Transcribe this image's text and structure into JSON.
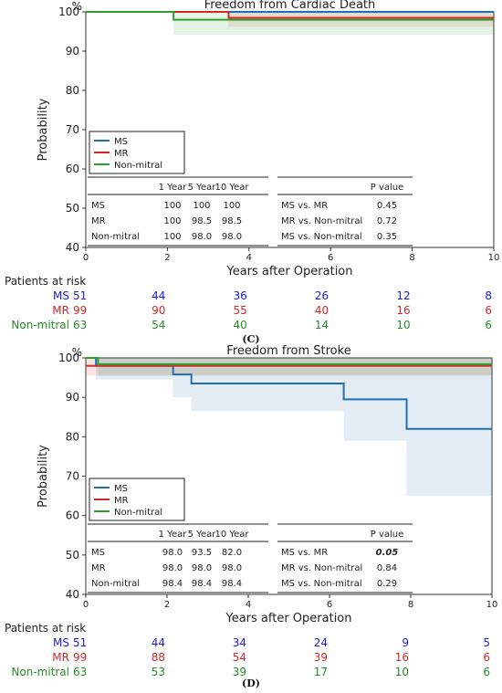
{
  "chart_data": [
    {
      "type": "line",
      "panel_label": "(C)",
      "title": "Freedom from Cardiac Death",
      "ylabel": "Probability",
      "y_unit": "%",
      "xlabel": "Years after Operation",
      "xlim": [
        0,
        10
      ],
      "ylim": [
        40,
        100
      ],
      "x_ticks": [
        "0",
        "2",
        "4",
        "6",
        "8",
        "10"
      ],
      "y_ticks": [
        "40",
        "50",
        "60",
        "70",
        "80",
        "90",
        "100"
      ],
      "legend_position": "lower-left",
      "series": [
        {
          "name": "MS",
          "color": "#1f6fb4",
          "steps": [
            [
              0,
              100
            ],
            [
              10,
              100
            ]
          ],
          "ci": [
            [
              0,
              100,
              100
            ],
            [
              10,
              100,
              100
            ]
          ]
        },
        {
          "name": "MR",
          "color": "#d62728",
          "steps": [
            [
              0,
              100
            ],
            [
              3.5,
              98.5
            ],
            [
              10,
              98.5
            ]
          ],
          "ci": [
            [
              0,
              100,
              100
            ],
            [
              3.5,
              96.2,
              100
            ],
            [
              10,
              96.2,
              100
            ]
          ]
        },
        {
          "name": "Non-mitral",
          "color": "#2ca02c",
          "steps": [
            [
              0,
              100
            ],
            [
              2.15,
              98.0
            ],
            [
              10,
              98.0
            ]
          ],
          "ci": [
            [
              0,
              100,
              100
            ],
            [
              2.15,
              94.2,
              100
            ],
            [
              10,
              94.2,
              100
            ]
          ]
        }
      ],
      "survival_table": {
        "headers": [
          "",
          "1 Year",
          "5 Year",
          "10 Year"
        ],
        "rows": [
          [
            "MS",
            "100",
            "100",
            "100"
          ],
          [
            "MR",
            "100",
            "98.5",
            "98.5"
          ],
          [
            "Non-mitral",
            "100",
            "98.0",
            "98.0"
          ]
        ]
      },
      "pvalue_table": {
        "header": "P value",
        "rows": [
          {
            "label": "MS vs. MR",
            "value": "0.45",
            "emphasis": false
          },
          {
            "label": "MR vs. Non-mitral",
            "value": "0.72",
            "emphasis": false
          },
          {
            "label": "MS vs. Non-mitral",
            "value": "0.35",
            "emphasis": false
          }
        ]
      },
      "risk_title": "Patients at risk",
      "at_risk": [
        {
          "name": "MS",
          "color": "#1a1ad6",
          "values": [
            "51",
            "44",
            "36",
            "26",
            "12",
            "8"
          ]
        },
        {
          "name": "MR",
          "color": "#d62728",
          "values": [
            "99",
            "90",
            "55",
            "40",
            "16",
            "6"
          ]
        },
        {
          "name": "Non-mitral",
          "color": "#2a8a2a",
          "values": [
            "63",
            "54",
            "40",
            "14",
            "10",
            "6"
          ]
        }
      ]
    },
    {
      "type": "line",
      "panel_label": "(D)",
      "title": "Freedom from Stroke",
      "ylabel": "Probability",
      "y_unit": "%",
      "xlabel": "Years after Operation",
      "xlim": [
        0,
        10
      ],
      "ylim": [
        40,
        100
      ],
      "x_ticks": [
        "0",
        "2",
        "4",
        "6",
        "8",
        "10"
      ],
      "y_ticks": [
        "40",
        "50",
        "60",
        "70",
        "80",
        "90",
        "100"
      ],
      "legend_position": "lower-left",
      "series": [
        {
          "name": "MS",
          "color": "#1f6fb4",
          "steps": [
            [
              0,
              100
            ],
            [
              0.25,
              98.0
            ],
            [
              2.15,
              95.8
            ],
            [
              2.6,
              93.5
            ],
            [
              6.35,
              89.5
            ],
            [
              7.9,
              82.0
            ],
            [
              10,
              82.0
            ]
          ],
          "ci": [
            [
              0,
              100,
              100
            ],
            [
              0.25,
              94.5,
              100
            ],
            [
              2.15,
              90.0,
              100
            ],
            [
              2.6,
              86.5,
              100
            ],
            [
              6.35,
              79.0,
              100
            ],
            [
              7.9,
              65.0,
              100
            ],
            [
              10,
              65.0,
              100
            ]
          ]
        },
        {
          "name": "MR",
          "color": "#d62728",
          "steps": [
            [
              0,
              98.0
            ],
            [
              10,
              98.0
            ]
          ],
          "ci": [
            [
              0,
              95.5,
              100
            ],
            [
              10,
              95.5,
              100
            ]
          ]
        },
        {
          "name": "Non-mitral",
          "color": "#2ca02c",
          "steps": [
            [
              0,
              100
            ],
            [
              0.3,
              98.4
            ],
            [
              10,
              98.4
            ]
          ],
          "ci": [
            [
              0,
              100,
              100
            ],
            [
              0.3,
              95.5,
              100
            ],
            [
              10,
              95.5,
              100
            ]
          ]
        }
      ],
      "survival_table": {
        "headers": [
          "",
          "1 Year",
          "5 Year",
          "10 Year"
        ],
        "rows": [
          [
            "MS",
            "98.0",
            "93.5",
            "82.0"
          ],
          [
            "MR",
            "98.0",
            "98.0",
            "98.0"
          ],
          [
            "Non-mitral",
            "98.4",
            "98.4",
            "98.4"
          ]
        ]
      },
      "pvalue_table": {
        "header": "P value",
        "rows": [
          {
            "label": "MS vs. MR",
            "value": "0.05",
            "emphasis": true
          },
          {
            "label": "MR vs. Non-mitral",
            "value": "0.84",
            "emphasis": false
          },
          {
            "label": "MS vs. Non-mitral",
            "value": "0.29",
            "emphasis": false
          }
        ]
      },
      "risk_title": "Patients at risk",
      "at_risk": [
        {
          "name": "MS",
          "color": "#1a1ad6",
          "values": [
            "51",
            "44",
            "34",
            "24",
            "9",
            "5"
          ]
        },
        {
          "name": "MR",
          "color": "#d62728",
          "values": [
            "99",
            "88",
            "54",
            "39",
            "16",
            "6"
          ]
        },
        {
          "name": "Non-mitral",
          "color": "#2a8a2a",
          "values": [
            "63",
            "53",
            "39",
            "17",
            "10",
            "6"
          ]
        }
      ]
    }
  ]
}
